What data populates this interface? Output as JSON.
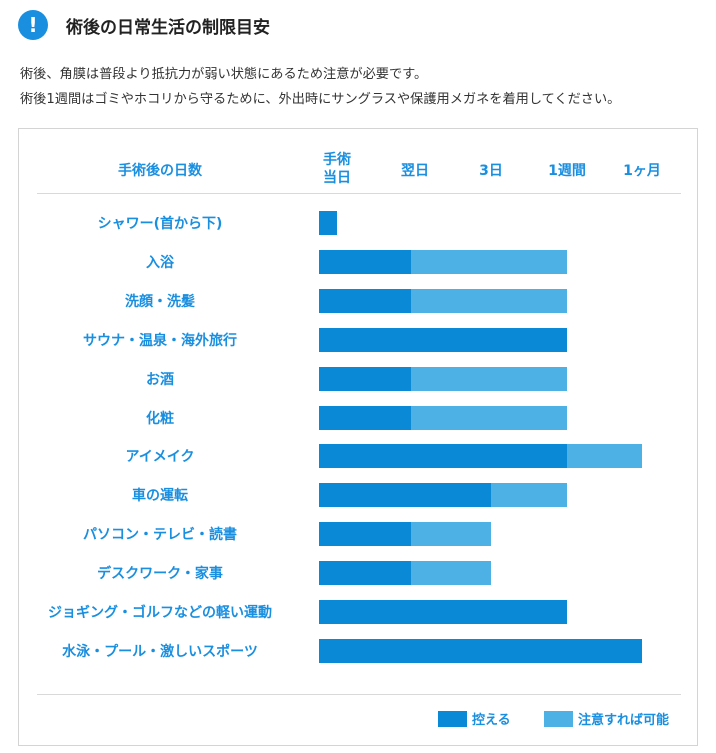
{
  "header": {
    "icon": "exclamation-icon",
    "icon_glyph": "!",
    "title": "術後の日常生活の制限目安"
  },
  "intro": {
    "line1": "術後、角膜は普段より抵抗力が弱い状態にあるため注意が必要です。",
    "line2": "術後1週間はゴミやホコリから守るために、外出時にサングラスや保護用メガネを着用してください。"
  },
  "chart_data": {
    "type": "bar",
    "orientation": "horizontal-timeline",
    "row_header": "手術後の日数",
    "timeline_labels": [
      "手術\n当日",
      "翌日",
      "3日",
      "1週間",
      "1ヶ月"
    ],
    "timeline_label_lines": [
      [
        "手術",
        "当日"
      ],
      [
        "翌日"
      ],
      [
        "3日"
      ],
      [
        "1週間"
      ],
      [
        "1ヶ月"
      ]
    ],
    "colors": {
      "avoid": "#0a8ad6",
      "caution": "#4eb1e6"
    },
    "legend": [
      {
        "key": "avoid",
        "label": "控える"
      },
      {
        "key": "caution",
        "label": "注意すれば可能"
      }
    ],
    "legend_position": "bottom-right",
    "rows": [
      {
        "label": "シャワー(首から下)",
        "avoid_until": "手術当日",
        "caution_until": null
      },
      {
        "label": "入浴",
        "avoid_until": "翌日",
        "caution_until": "1週間"
      },
      {
        "label": "洗顔・洗髪",
        "avoid_until": "翌日",
        "caution_until": "1週間"
      },
      {
        "label": "サウナ・温泉・海外旅行",
        "avoid_until": "1週間",
        "caution_until": null
      },
      {
        "label": "お酒",
        "avoid_until": "翌日",
        "caution_until": "1週間"
      },
      {
        "label": "化粧",
        "avoid_until": "翌日",
        "caution_until": "1週間"
      },
      {
        "label": "アイメイク",
        "avoid_until": "1週間",
        "caution_until": "1ヶ月"
      },
      {
        "label": "車の運転",
        "avoid_until": "3日",
        "caution_until": "1週間"
      },
      {
        "label": "パソコン・テレビ・読書",
        "avoid_until": "翌日",
        "caution_until": "3日"
      },
      {
        "label": "デスクワーク・家事",
        "avoid_until": "翌日",
        "caution_until": "3日"
      },
      {
        "label": "ジョギング・ゴルフなどの軽い運動",
        "avoid_until": "1週間",
        "caution_until": null
      },
      {
        "label": "水泳・プール・激しいスポーツ",
        "avoid_until": "1ヶ月",
        "caution_until": null
      }
    ]
  }
}
